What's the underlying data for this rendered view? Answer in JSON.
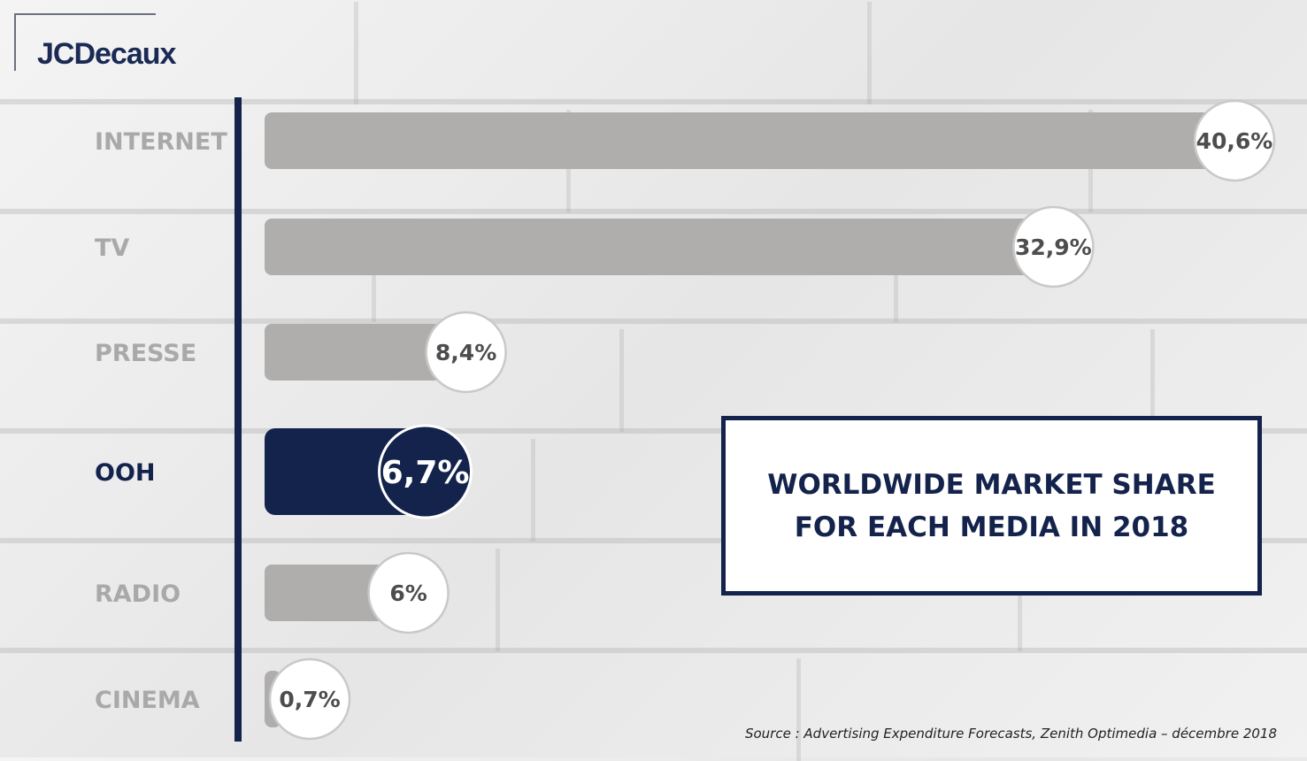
{
  "brand": {
    "logo_text": "JCDecaux"
  },
  "title": {
    "line1": "WORLDWIDE MARKET SHARE",
    "line2": "FOR EACH MEDIA IN 2018"
  },
  "source": "Source : Advertising Expenditure Forecasts, Zenith Optimedia – décembre 2018",
  "colors": {
    "bar_default": "#b0adad",
    "bar_highlight": "#14234c",
    "label_default": "#a9a9a9",
    "label_highlight": "#14234c",
    "axis": "#14234c"
  },
  "chart_data": {
    "type": "bar",
    "orientation": "horizontal",
    "title": "WORLDWIDE MARKET SHARE FOR EACH MEDIA IN 2018",
    "categories": [
      "INTERNET",
      "TV",
      "PRESSE",
      "OOH",
      "RADIO",
      "CINEMA"
    ],
    "values": [
      40.6,
      32.9,
      8.4,
      6.7,
      6.0,
      0.7
    ],
    "value_labels": [
      "40,6%",
      "32,9%",
      "8,4%",
      "6,7%",
      "6%",
      "0,7%"
    ],
    "highlight": "OOH",
    "unit": "%",
    "grid": false,
    "legend": "none"
  }
}
